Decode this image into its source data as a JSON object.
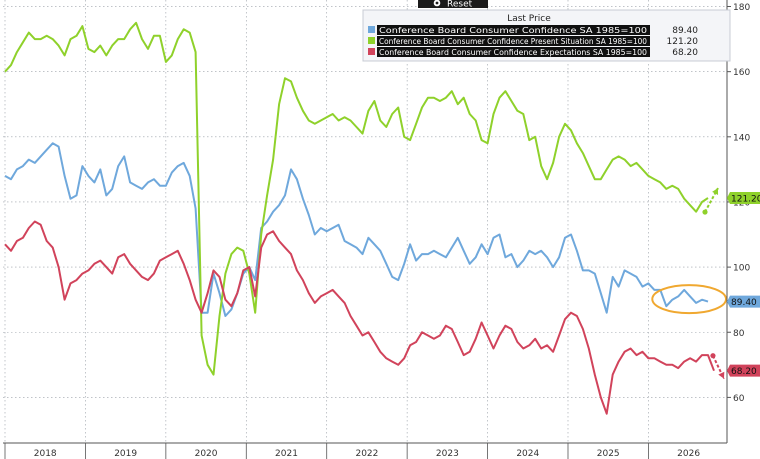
{
  "toolbar": {
    "reset_label": "Reset"
  },
  "legend": {
    "header": "Last Price"
  },
  "chart_data": {
    "type": "line",
    "x_tick_labels": [
      "2018",
      "2019",
      "2020",
      "2021",
      "2022",
      "2023",
      "2024",
      "2025",
      "2026"
    ],
    "y_ticks": [
      60,
      80,
      100,
      120,
      140,
      160,
      180
    ],
    "ylim": [
      46,
      182
    ],
    "grid": true,
    "legend_position": "top-center",
    "series": [
      {
        "name": "Conference Board Consumer Confidence SA 1985=100",
        "color": "#6fa8dc",
        "last_value": "89.40",
        "values": [
          128,
          127,
          130,
          131,
          133,
          132,
          134,
          136,
          138,
          137,
          128,
          121,
          122,
          131,
          128,
          126,
          130,
          122,
          124,
          131,
          134,
          126,
          125,
          124,
          126,
          127,
          125,
          125,
          129,
          131,
          132,
          128,
          118,
          86,
          86,
          98,
          92,
          85,
          87,
          92,
          98,
          100,
          96,
          112,
          114,
          117,
          119,
          122,
          130,
          127,
          121,
          116,
          110,
          112,
          111,
          112,
          113,
          108,
          107,
          106,
          104,
          109,
          107,
          105,
          101,
          97,
          96,
          101,
          107,
          102,
          104,
          104,
          105,
          104,
          103,
          106,
          109,
          105,
          101,
          103,
          107,
          104,
          109,
          110,
          103,
          104,
          100,
          102,
          105,
          104,
          105,
          103,
          100,
          103,
          109,
          110,
          105,
          99,
          99,
          98,
          92,
          86,
          97,
          94,
          99,
          98,
          97,
          94,
          95,
          93,
          93,
          88,
          90,
          91,
          93,
          91,
          89,
          90,
          89.4
        ]
      },
      {
        "name": "Conference Board Consumer Confidence Present Situation SA 1985=100",
        "color": "#8fd12b",
        "last_value": "121.20",
        "values": [
          160,
          162,
          166,
          169,
          172,
          170,
          170,
          171,
          170,
          168,
          165,
          170,
          171,
          174,
          167,
          166,
          168,
          165,
          168,
          170,
          170,
          173,
          175,
          170,
          167,
          171,
          171,
          163,
          165,
          170,
          173,
          172,
          166,
          79,
          70,
          67,
          85,
          98,
          104,
          106,
          105,
          98,
          86,
          110,
          122,
          133,
          150,
          158,
          157,
          152,
          148,
          145,
          144,
          145,
          146,
          147,
          145,
          146,
          145,
          143,
          141,
          148,
          151,
          145,
          143,
          147,
          149,
          140,
          139,
          144,
          149,
          152,
          152,
          151,
          152,
          154,
          150,
          152,
          147,
          145,
          139,
          138,
          147,
          152,
          154,
          151,
          148,
          147,
          139,
          140,
          131,
          127,
          132,
          140,
          144,
          142,
          138,
          135,
          131,
          127,
          127,
          130,
          133,
          134,
          133,
          131,
          132,
          130,
          128,
          127,
          126,
          124,
          125,
          124,
          121,
          119,
          117,
          120,
          121.2
        ]
      },
      {
        "name": "Conference Board Consumer Confidence Expectations SA 1985=100",
        "color": "#d1435b",
        "last_value": "68.20",
        "values": [
          107,
          105,
          108,
          109,
          112,
          114,
          113,
          108,
          106,
          100,
          90,
          95,
          96,
          98,
          99,
          101,
          102,
          100,
          98,
          103,
          104,
          101,
          99,
          97,
          96,
          98,
          102,
          103,
          104,
          105,
          101,
          96,
          90,
          86,
          92,
          99,
          97,
          90,
          88,
          92,
          99,
          100,
          91,
          106,
          110,
          111,
          108,
          106,
          104,
          99,
          96,
          92,
          89,
          91,
          92,
          93,
          91,
          89,
          85,
          82,
          79,
          80,
          77,
          74,
          72,
          71,
          70,
          72,
          76,
          77,
          80,
          79,
          78,
          79,
          82,
          81,
          77,
          73,
          74,
          78,
          83,
          79,
          75,
          79,
          82,
          81,
          77,
          75,
          76,
          78,
          75,
          76,
          74,
          79,
          84,
          86,
          85,
          81,
          75,
          67,
          60,
          55,
          67,
          71,
          74,
          75,
          73,
          74,
          72,
          72,
          71,
          70,
          70,
          69,
          71,
          72,
          71,
          73,
          73,
          68.2
        ]
      }
    ],
    "annotations": [
      {
        "type": "ellipse",
        "color": "#f0a830",
        "around": "Conference Board Consumer Confidence SA 1985=100"
      },
      {
        "type": "arrow",
        "color": "#8fd12b",
        "direction": "up"
      },
      {
        "type": "arrow",
        "color": "#d1435b",
        "direction": "down"
      }
    ]
  }
}
